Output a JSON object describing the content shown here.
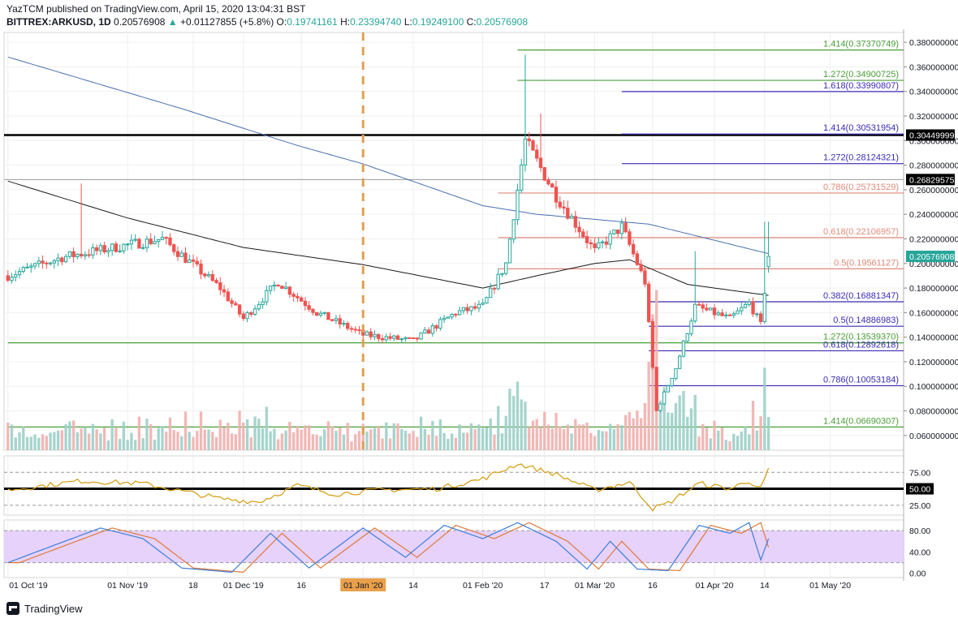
{
  "header": {
    "line1": "YazTCM published on TradingView.com, April 15, 2020 13:04:31 BST",
    "symbol": "BITTREX:ARKUSD, 1D",
    "last": "0.20576908",
    "change": "+0.01127855 (+5.8%)",
    "o_label": "O:",
    "o": "0.19741161",
    "h_label": "H:",
    "h": "0.23394740",
    "l_label": "L:",
    "l": "0.19249100",
    "c_label": "C:",
    "c": "0.20576908"
  },
  "footer": {
    "brand": "TradingView"
  },
  "chart_data": {
    "type": "candlestick",
    "price_axis": {
      "ticks": [
        "0.380000000",
        "0.360000000",
        "0.340000000",
        "0.320000000",
        "0.300000000",
        "0.280000000",
        "0.260000000",
        "0.240000000",
        "0.220000000",
        "0.200000000",
        "0.180000000",
        "0.160000000",
        "0.140000000",
        "0.120000000",
        "0.100000000",
        "0.080000000",
        "0.060000000"
      ],
      "range": [
        0.048,
        0.388
      ],
      "badges": [
        {
          "text": "0.30449999",
          "value": 0.30449999,
          "color": "#000000"
        },
        {
          "text": "0.26829575",
          "value": 0.26829575,
          "color": "#000000"
        },
        {
          "text": "0.20576908",
          "value": 0.20576908,
          "color": "#26a69a"
        }
      ]
    },
    "time_axis": {
      "ticks": [
        "01 Oct '19",
        "01 Nov '19",
        "18",
        "01 Dec '19",
        "16",
        "01 Jan '20",
        "14",
        "01 Feb '20",
        "17",
        "01 Mar '20",
        "16",
        "01 Apr '20",
        "14",
        "01 May '20"
      ],
      "highlight": "01 Jan '20",
      "dates": [
        "2019-10-01",
        "2019-11-01",
        "2019-11-18",
        "2019-12-01",
        "2019-12-16",
        "2020-01-01",
        "2020-01-14",
        "2020-02-01",
        "2020-02-17",
        "2020-03-01",
        "2020-03-16",
        "2020-04-01",
        "2020-04-14",
        "2020-05-01"
      ],
      "vertical_dashed_line": "2020-01-01"
    },
    "candles": {
      "start": "2019-10-01",
      "end": "2020-04-15",
      "last": {
        "o": 0.19741161,
        "h": 0.2339474,
        "l": 0.192491,
        "c": 0.20576908
      },
      "key_points": [
        [
          "2019-10-01",
          0.19
        ],
        [
          "2019-10-15",
          0.205
        ],
        [
          "2019-11-01",
          0.215
        ],
        [
          "2019-11-10",
          0.22
        ],
        [
          "2019-11-25",
          0.18
        ],
        [
          "2019-12-01",
          0.155
        ],
        [
          "2019-12-10",
          0.185
        ],
        [
          "2019-12-20",
          0.16
        ],
        [
          "2020-01-01",
          0.142
        ],
        [
          "2020-01-14",
          0.137
        ],
        [
          "2020-01-25",
          0.16
        ],
        [
          "2020-02-01",
          0.165
        ],
        [
          "2020-02-07",
          0.2
        ],
        [
          "2020-02-12",
          0.3
        ],
        [
          "2020-02-20",
          0.255
        ],
        [
          "2020-03-01",
          0.21
        ],
        [
          "2020-03-08",
          0.23
        ],
        [
          "2020-03-14",
          0.185
        ],
        [
          "2020-03-17",
          0.08
        ],
        [
          "2020-03-22",
          0.115
        ],
        [
          "2020-03-27",
          0.165
        ],
        [
          "2020-04-05",
          0.155
        ],
        [
          "2020-04-10",
          0.168
        ],
        [
          "2020-04-13",
          0.15
        ],
        [
          "2020-04-15",
          0.20576908
        ]
      ],
      "wick_highs": [
        [
          "2019-10-20",
          0.265
        ],
        [
          "2020-02-12",
          0.37
        ],
        [
          "2020-02-16",
          0.322
        ],
        [
          "2020-03-27",
          0.21
        ],
        [
          "2020-04-14",
          0.2339474
        ]
      ]
    },
    "moving_averages": [
      {
        "color": "#4a6fb0",
        "points": [
          [
            "2019-10-01",
            0.368
          ],
          [
            "2019-11-15",
            0.326
          ],
          [
            "2019-12-15",
            0.296
          ],
          [
            "2020-01-01",
            0.281
          ],
          [
            "2020-02-01",
            0.247
          ],
          [
            "2020-02-15",
            0.24
          ],
          [
            "2020-03-15",
            0.232
          ],
          [
            "2020-04-15",
            0.208
          ]
        ]
      },
      {
        "color": "#1a1a1a",
        "points": [
          [
            "2019-10-01",
            0.267
          ],
          [
            "2019-11-01",
            0.237
          ],
          [
            "2019-12-01",
            0.213
          ],
          [
            "2020-01-01",
            0.199
          ],
          [
            "2020-02-01",
            0.18
          ],
          [
            "2020-02-15",
            0.19
          ],
          [
            "2020-03-01",
            0.2
          ],
          [
            "2020-03-10",
            0.203
          ],
          [
            "2020-03-25",
            0.183
          ],
          [
            "2020-04-15",
            0.174
          ]
        ]
      }
    ],
    "levels": [
      {
        "label": "1.414(0.37370749)",
        "value": 0.37370749,
        "color": "#4a9e38",
        "from": "2020-02-10"
      },
      {
        "label": "1.272(0.34900725)",
        "value": 0.34900725,
        "color": "#4a9e38",
        "from": "2020-02-10"
      },
      {
        "label": "1.618(0.33990807)",
        "value": 0.33990807,
        "color": "#3b2bb5",
        "from": "2020-03-08"
      },
      {
        "label": "1.414(0.30531954)",
        "value": 0.30531954,
        "color": "#3b2bb5",
        "from": "2020-03-08"
      },
      {
        "label": "1.272(0.28124321)",
        "value": 0.28124321,
        "color": "#3b2bb5",
        "from": "2020-03-08"
      },
      {
        "label": "0.786(0.25731529)",
        "value": 0.25731529,
        "color": "#e08a7a",
        "from": "2020-02-05"
      },
      {
        "label": "0.618(0.22106957)",
        "value": 0.22106957,
        "color": "#e08a7a",
        "from": "2020-02-05"
      },
      {
        "label": "0.5(0.19561127)",
        "value": 0.19561127,
        "color": "#e08a7a",
        "from": "2020-02-05"
      },
      {
        "label": "0.382(0.16881347)",
        "value": 0.16881347,
        "color": "#3b2bb5",
        "from": "2020-03-15"
      },
      {
        "label": "0.5(0.14886983)",
        "value": 0.14886983,
        "color": "#3b2bb5",
        "from": "2020-03-15"
      },
      {
        "label": "1.272(0.13539370)",
        "value": 0.1353937,
        "color": "#4a9e38",
        "from": "2019-10-01"
      },
      {
        "label": "0.618(0.12892618)",
        "value": 0.12892618,
        "color": "#3b2bb5",
        "from": "2020-03-15"
      },
      {
        "label": "0.786(0.10053184)",
        "value": 0.10053184,
        "color": "#3b2bb5",
        "from": "2020-03-15"
      },
      {
        "label": "1.414(0.06690307)",
        "value": 0.06690307,
        "color": "#4a9e38",
        "from": "2019-10-01"
      }
    ],
    "horizontal_lines": [
      {
        "value": 0.30449999,
        "color": "#000000",
        "style": "thick"
      },
      {
        "value": 0.26829575,
        "color": "#9a9a9a",
        "style": "thin"
      }
    ],
    "rsi": {
      "ticks": [
        "75.00",
        "50.00",
        "25.00"
      ],
      "range": [
        10,
        100
      ],
      "midline_badge": "50.00",
      "key_points": [
        [
          "2019-10-01",
          48
        ],
        [
          "2019-10-20",
          62
        ],
        [
          "2019-11-05",
          58
        ],
        [
          "2019-11-25",
          35
        ],
        [
          "2019-12-05",
          30
        ],
        [
          "2019-12-15",
          55
        ],
        [
          "2019-12-25",
          42
        ],
        [
          "2020-01-05",
          48
        ],
        [
          "2020-01-20",
          50
        ],
        [
          "2020-02-01",
          65
        ],
        [
          "2020-02-10",
          88
        ],
        [
          "2020-02-20",
          72
        ],
        [
          "2020-03-01",
          48
        ],
        [
          "2020-03-10",
          60
        ],
        [
          "2020-03-16",
          20
        ],
        [
          "2020-03-20",
          28
        ],
        [
          "2020-03-28",
          58
        ],
        [
          "2020-04-05",
          50
        ],
        [
          "2020-04-10",
          62
        ],
        [
          "2020-04-13",
          50
        ],
        [
          "2020-04-15",
          79
        ]
      ]
    },
    "stoch_rsi": {
      "ticks": [
        "80.00",
        "40.00",
        "0.00"
      ],
      "range": [
        -8,
        100
      ],
      "band": [
        20,
        80
      ],
      "key_points": [
        [
          "2019-10-01",
          20
        ],
        [
          "2019-10-12",
          50
        ],
        [
          "2019-10-25",
          85
        ],
        [
          "2019-11-05",
          65
        ],
        [
          "2019-11-15",
          10
        ],
        [
          "2019-11-28",
          2
        ],
        [
          "2019-12-08",
          75
        ],
        [
          "2019-12-18",
          10
        ],
        [
          "2020-01-01",
          85
        ],
        [
          "2020-01-12",
          30
        ],
        [
          "2020-01-22",
          90
        ],
        [
          "2020-02-01",
          65
        ],
        [
          "2020-02-10",
          95
        ],
        [
          "2020-02-20",
          60
        ],
        [
          "2020-02-28",
          8
        ],
        [
          "2020-03-05",
          60
        ],
        [
          "2020-03-12",
          8
        ],
        [
          "2020-03-20",
          5
        ],
        [
          "2020-03-28",
          90
        ],
        [
          "2020-04-05",
          75
        ],
        [
          "2020-04-10",
          95
        ],
        [
          "2020-04-13",
          25
        ],
        [
          "2020-04-15",
          65
        ]
      ]
    }
  }
}
